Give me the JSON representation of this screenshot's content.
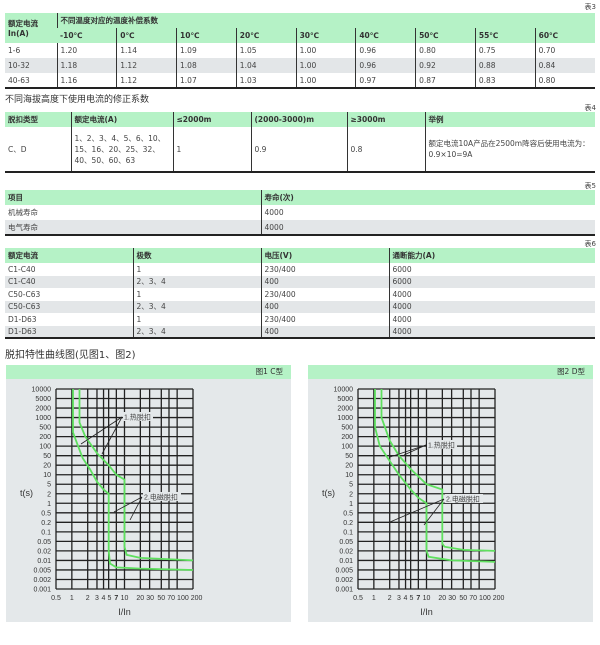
{
  "table3": {
    "no": "表3",
    "corner": "额定电流In(A)",
    "group": "不同温度对应的温度补偿系数",
    "cols": [
      "-10℃",
      "0℃",
      "10℃",
      "20℃",
      "30℃",
      "40℃",
      "50℃",
      "55℃",
      "60℃"
    ],
    "rows": [
      [
        "1-6",
        "1.20",
        "1.14",
        "1.09",
        "1.05",
        "1.00",
        "0.96",
        "0.80",
        "0.75",
        "0.70"
      ],
      [
        "10-32",
        "1.18",
        "1.12",
        "1.08",
        "1.04",
        "1.00",
        "0.96",
        "0.92",
        "0.88",
        "0.84"
      ],
      [
        "40-63",
        "1.16",
        "1.12",
        "1.07",
        "1.03",
        "1.00",
        "0.97",
        "0.87",
        "0.83",
        "0.80"
      ]
    ]
  },
  "altitude_title": "不同海拔高度下使用电流的修正系数",
  "table4": {
    "no": "表4",
    "cols": [
      "脱扣类型",
      "额定电流(A)",
      "≤2000m",
      "(2000-3000)m",
      "≥3000m",
      "举例"
    ],
    "rows": [
      [
        "C、D",
        "1、2、3、4、5、6、10、15、16、20、25、32、40、50、60、63",
        "1",
        "0.9",
        "0.8",
        "额定电流10A产品在2500m降容后使用电流为：0.9×10=9A"
      ]
    ]
  },
  "table5": {
    "no": "表5",
    "cols": [
      "项目",
      "寿命(次)"
    ],
    "rows": [
      [
        "机械寿命",
        "4000"
      ],
      [
        "电气寿命",
        "4000"
      ]
    ]
  },
  "table6": {
    "no": "表6",
    "cols": [
      "额定电流",
      "极数",
      "电压(V)",
      "通断能力(A)"
    ],
    "rows": [
      [
        "C1-C40",
        "1",
        "230/400",
        "6000"
      ],
      [
        "C1-C40",
        "2、3、4",
        "400",
        "6000"
      ],
      [
        "C50-C63",
        "1",
        "230/400",
        "4000"
      ],
      [
        "C50-C63",
        "2、3、4",
        "400",
        "4000"
      ],
      [
        "D1-D63",
        "1",
        "230/400",
        "4000"
      ],
      [
        "D1-D63",
        "2、3、4",
        "400",
        "4000"
      ]
    ]
  },
  "curves_title": "脱扣特性曲线图(见图1、图2)",
  "chart_data": [
    {
      "type": "line",
      "title": "图1  C型",
      "xlabel": "I/In",
      "ylabel": "t(s)",
      "xscale": "log",
      "yscale": "log",
      "grid": true,
      "curve_color": "#5fe05f",
      "xticks": [
        "0.5",
        "1",
        "2",
        "3",
        "4",
        "5",
        "7",
        "10",
        "20",
        "30",
        "50",
        "70",
        "100",
        "200"
      ],
      "yticks": [
        "0.001",
        "0.002",
        "0.005",
        "0.01",
        "0.02",
        "0.05",
        "0.1",
        "0.2",
        "0.5",
        "1",
        "2",
        "5",
        "10",
        "20",
        "50",
        "100",
        "200",
        "500",
        "1000",
        "2000",
        "5000",
        "10000"
      ],
      "annotations": [
        "1.热脱扣",
        "2.电磁脱扣"
      ],
      "series": [
        {
          "x": [
            1.05,
            1.05,
            1.2,
            1.6,
            2.2,
            3,
            4,
            5,
            5,
            5.3,
            7,
            20,
            200
          ],
          "y": [
            10000,
            300,
            150,
            40,
            15,
            6,
            3,
            2,
            0.02,
            0.008,
            0.006,
            0.0055,
            0.005
          ]
        },
        {
          "x": [
            1.4,
            1.4,
            1.8,
            3,
            5,
            7,
            10,
            10,
            11,
            20,
            200
          ],
          "y": [
            10000,
            700,
            200,
            60,
            20,
            10,
            7,
            0.03,
            0.015,
            0.012,
            0.01
          ]
        }
      ]
    },
    {
      "type": "line",
      "title": "图2  D型",
      "xlabel": "I/In",
      "ylabel": "t(s)",
      "xscale": "log",
      "yscale": "log",
      "grid": true,
      "curve_color": "#5fe05f",
      "xticks": [
        "0.5",
        "1",
        "2",
        "3",
        "4",
        "5",
        "7",
        "10",
        "20",
        "30",
        "50",
        "70",
        "100",
        "200"
      ],
      "yticks": [
        "0.001",
        "0.002",
        "0.005",
        "0.01",
        "0.02",
        "0.05",
        "0.1",
        "0.2",
        "0.5",
        "1",
        "2",
        "5",
        "10",
        "20",
        "50",
        "100",
        "200",
        "500",
        "1000",
        "2000",
        "5000",
        "10000"
      ],
      "annotations": [
        "1.热脱扣",
        "2.电磁脱扣"
      ],
      "series": [
        {
          "x": [
            1.05,
            1.05,
            1.3,
            2,
            3,
            5,
            7,
            10,
            10,
            11,
            30,
            200
          ],
          "y": [
            10000,
            500,
            100,
            30,
            10,
            3,
            1.5,
            1,
            0.02,
            0.013,
            0.01,
            0.009
          ]
        },
        {
          "x": [
            1.4,
            1.4,
            2,
            3,
            5,
            10,
            20,
            20,
            22,
            50,
            200
          ],
          "y": [
            10000,
            1000,
            150,
            50,
            15,
            5,
            3,
            0.04,
            0.03,
            0.022,
            0.02
          ]
        }
      ]
    }
  ]
}
